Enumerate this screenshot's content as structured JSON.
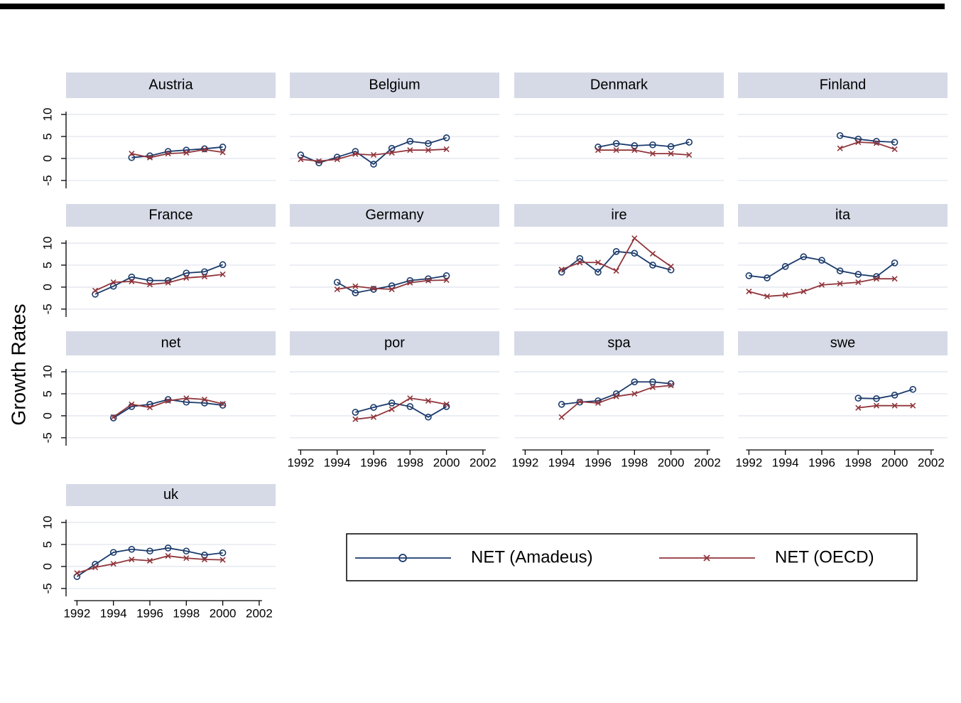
{
  "y_axis_title": "Growth Rates",
  "chart_data": [
    {
      "type": "line",
      "title": "Austria",
      "x": [
        1992,
        1993,
        1994,
        1995,
        1996,
        1997,
        1998,
        1999,
        2000,
        2001
      ],
      "xlim": [
        1991.4,
        2002.9
      ],
      "ylim": [
        -6.8,
        13.4
      ],
      "yticks": [
        -5,
        0,
        5,
        10
      ],
      "ytick_labels": true,
      "grid": true,
      "series": [
        {
          "name": "NET (Amadeus)",
          "color": "#1a3a6b",
          "marker": "circle",
          "values": [
            null,
            null,
            null,
            0.2,
            0.6,
            1.6,
            1.9,
            2.2,
            2.6,
            null
          ]
        },
        {
          "name": "NET (OECD)",
          "color": "#90353b",
          "marker": "x",
          "values": [
            null,
            null,
            null,
            1.1,
            0.2,
            1.1,
            1.3,
            2.0,
            1.4,
            null
          ]
        }
      ]
    },
    {
      "type": "line",
      "title": "Belgium",
      "x": [
        1992,
        1993,
        1994,
        1995,
        1996,
        1997,
        1998,
        1999,
        2000,
        2001
      ],
      "xlim": [
        1991.4,
        2002.9
      ],
      "ylim": [
        -6.8,
        13.4
      ],
      "yticks": [
        -5,
        0,
        5,
        10
      ],
      "ytick_labels": false,
      "grid": true,
      "series": [
        {
          "color": "#1a3a6b",
          "marker": "circle",
          "values": [
            0.8,
            -1.0,
            0.3,
            1.6,
            -1.3,
            2.3,
            3.9,
            3.4,
            4.7,
            null
          ]
        },
        {
          "color": "#90353b",
          "marker": "x",
          "values": [
            -0.2,
            -0.6,
            -0.2,
            1.0,
            0.8,
            1.3,
            1.9,
            1.9,
            2.1,
            null
          ]
        }
      ]
    },
    {
      "type": "line",
      "title": "Denmark",
      "x": [
        1992,
        1993,
        1994,
        1995,
        1996,
        1997,
        1998,
        1999,
        2000,
        2001
      ],
      "xlim": [
        1991.4,
        2002.9
      ],
      "ylim": [
        -6.8,
        13.4
      ],
      "yticks": [
        -5,
        0,
        5,
        10
      ],
      "ytick_labels": false,
      "grid": true,
      "series": [
        {
          "color": "#1a3a6b",
          "marker": "circle",
          "values": [
            null,
            null,
            null,
            null,
            2.6,
            3.4,
            2.9,
            3.1,
            2.7,
            3.7
          ]
        },
        {
          "color": "#90353b",
          "marker": "x",
          "values": [
            null,
            null,
            null,
            null,
            1.9,
            1.9,
            1.9,
            1.1,
            1.1,
            0.8
          ]
        }
      ]
    },
    {
      "type": "line",
      "title": "Finland",
      "x": [
        1992,
        1993,
        1994,
        1995,
        1996,
        1997,
        1998,
        1999,
        2000,
        2001
      ],
      "xlim": [
        1991.4,
        2002.9
      ],
      "ylim": [
        -6.8,
        13.4
      ],
      "yticks": [
        -5,
        0,
        5,
        10
      ],
      "ytick_labels": false,
      "grid": true,
      "series": [
        {
          "color": "#1a3a6b",
          "marker": "circle",
          "values": [
            null,
            null,
            null,
            null,
            null,
            5.2,
            4.4,
            3.9,
            3.7,
            null
          ]
        },
        {
          "color": "#90353b",
          "marker": "x",
          "values": [
            null,
            null,
            null,
            null,
            null,
            2.3,
            3.7,
            3.5,
            2.1,
            null
          ]
        }
      ]
    },
    {
      "type": "line",
      "title": "France",
      "x": [
        1992,
        1993,
        1994,
        1995,
        1996,
        1997,
        1998,
        1999,
        2000,
        2001
      ],
      "xlim": [
        1991.4,
        2002.9
      ],
      "ylim": [
        -6.8,
        13.4
      ],
      "yticks": [
        -5,
        0,
        5,
        10
      ],
      "ytick_labels": true,
      "grid": true,
      "series": [
        {
          "color": "#1a3a6b",
          "marker": "circle",
          "values": [
            null,
            -1.6,
            0.2,
            2.3,
            1.5,
            1.5,
            3.2,
            3.5,
            5.1,
            null
          ]
        },
        {
          "color": "#90353b",
          "marker": "x",
          "values": [
            null,
            -0.8,
            1.1,
            1.3,
            0.6,
            1.0,
            2.1,
            2.4,
            2.9,
            null
          ]
        }
      ]
    },
    {
      "type": "line",
      "title": "Germany",
      "x": [
        1992,
        1993,
        1994,
        1995,
        1996,
        1997,
        1998,
        1999,
        2000,
        2001
      ],
      "xlim": [
        1991.4,
        2002.9
      ],
      "ylim": [
        -6.8,
        13.4
      ],
      "yticks": [
        -5,
        0,
        5,
        10
      ],
      "ytick_labels": false,
      "grid": true,
      "series": [
        {
          "color": "#1a3a6b",
          "marker": "circle",
          "values": [
            null,
            null,
            1.1,
            -1.3,
            -0.5,
            0.3,
            1.5,
            1.9,
            2.6,
            null
          ]
        },
        {
          "color": "#90353b",
          "marker": "x",
          "values": [
            null,
            null,
            -0.5,
            0.2,
            -0.3,
            -0.5,
            1.0,
            1.5,
            1.6,
            null
          ]
        }
      ]
    },
    {
      "type": "line",
      "title": "ire",
      "x": [
        1992,
        1993,
        1994,
        1995,
        1996,
        1997,
        1998,
        1999,
        2000,
        2001
      ],
      "xlim": [
        1991.4,
        2002.9
      ],
      "ylim": [
        -6.8,
        13.4
      ],
      "yticks": [
        -5,
        0,
        5,
        10
      ],
      "ytick_labels": false,
      "grid": true,
      "series": [
        {
          "color": "#1a3a6b",
          "marker": "circle",
          "values": [
            null,
            null,
            3.4,
            6.5,
            3.4,
            8.1,
            7.7,
            5.0,
            3.9,
            null
          ]
        },
        {
          "color": "#90353b",
          "marker": "x",
          "values": [
            null,
            null,
            4.0,
            5.6,
            5.6,
            3.7,
            11.1,
            7.6,
            4.7,
            null
          ]
        }
      ]
    },
    {
      "type": "line",
      "title": "ita",
      "x": [
        1992,
        1993,
        1994,
        1995,
        1996,
        1997,
        1998,
        1999,
        2000,
        2001
      ],
      "xlim": [
        1991.4,
        2002.9
      ],
      "ylim": [
        -6.8,
        13.4
      ],
      "yticks": [
        -5,
        0,
        5,
        10
      ],
      "ytick_labels": false,
      "grid": true,
      "series": [
        {
          "color": "#1a3a6b",
          "marker": "circle",
          "values": [
            2.6,
            2.1,
            4.7,
            6.9,
            6.1,
            3.7,
            2.9,
            2.4,
            5.5,
            null
          ]
        },
        {
          "color": "#90353b",
          "marker": "x",
          "values": [
            -1.0,
            -2.1,
            -1.8,
            -1.0,
            0.5,
            0.8,
            1.1,
            1.9,
            1.9,
            null
          ]
        }
      ]
    },
    {
      "type": "line",
      "title": "net",
      "x": [
        1992,
        1993,
        1994,
        1995,
        1996,
        1997,
        1998,
        1999,
        2000,
        2001
      ],
      "xlim": [
        1991.4,
        2002.9
      ],
      "ylim": [
        -6.8,
        13.4
      ],
      "yticks": [
        -5,
        0,
        5,
        10
      ],
      "ytick_labels": true,
      "grid": true,
      "series": [
        {
          "color": "#1a3a6b",
          "marker": "circle",
          "values": [
            null,
            null,
            -0.5,
            2.1,
            2.6,
            3.7,
            3.1,
            2.9,
            2.4,
            null
          ]
        },
        {
          "color": "#90353b",
          "marker": "x",
          "values": [
            null,
            null,
            -0.3,
            2.6,
            1.9,
            3.4,
            4.0,
            3.7,
            2.7,
            null
          ]
        }
      ]
    },
    {
      "type": "line",
      "title": "por",
      "x": [
        1992,
        1993,
        1994,
        1995,
        1996,
        1997,
        1998,
        1999,
        2000,
        2001
      ],
      "xlim": [
        1991.4,
        2002.9
      ],
      "ylim": [
        -6.8,
        13.4
      ],
      "xticks": [
        1992,
        1994,
        1996,
        1998,
        2000,
        2002
      ],
      "yticks": [
        -5,
        0,
        5,
        10
      ],
      "ytick_labels": false,
      "grid": true,
      "series": [
        {
          "color": "#1a3a6b",
          "marker": "circle",
          "values": [
            null,
            null,
            null,
            0.8,
            1.9,
            2.9,
            2.1,
            -0.3,
            2.1,
            null
          ]
        },
        {
          "color": "#90353b",
          "marker": "x",
          "values": [
            null,
            null,
            null,
            -0.8,
            -0.3,
            1.5,
            4.0,
            3.4,
            2.6,
            null
          ]
        }
      ]
    },
    {
      "type": "line",
      "title": "spa",
      "x": [
        1992,
        1993,
        1994,
        1995,
        1996,
        1997,
        1998,
        1999,
        2000,
        2001
      ],
      "xlim": [
        1991.4,
        2002.9
      ],
      "ylim": [
        -6.8,
        13.4
      ],
      "xticks": [
        1992,
        1994,
        1996,
        1998,
        2000,
        2002
      ],
      "yticks": [
        -5,
        0,
        5,
        10
      ],
      "ytick_labels": false,
      "grid": true,
      "series": [
        {
          "color": "#1a3a6b",
          "marker": "circle",
          "values": [
            null,
            null,
            2.6,
            3.1,
            3.4,
            5.0,
            7.7,
            7.7,
            7.3,
            null
          ]
        },
        {
          "color": "#90353b",
          "marker": "x",
          "values": [
            null,
            null,
            -0.3,
            3.2,
            2.9,
            4.4,
            5.0,
            6.5,
            6.9,
            null
          ]
        }
      ]
    },
    {
      "type": "line",
      "title": "swe",
      "x": [
        1992,
        1993,
        1994,
        1995,
        1996,
        1997,
        1998,
        1999,
        2000,
        2001
      ],
      "xlim": [
        1991.4,
        2002.9
      ],
      "ylim": [
        -6.8,
        13.4
      ],
      "xticks": [
        1992,
        1994,
        1996,
        1998,
        2000,
        2002
      ],
      "yticks": [
        -5,
        0,
        5,
        10
      ],
      "ytick_labels": false,
      "grid": true,
      "series": [
        {
          "color": "#1a3a6b",
          "marker": "circle",
          "values": [
            null,
            null,
            null,
            null,
            null,
            null,
            4.0,
            3.9,
            4.7,
            6.0
          ]
        },
        {
          "color": "#90353b",
          "marker": "x",
          "values": [
            null,
            null,
            null,
            null,
            null,
            null,
            1.8,
            2.3,
            2.3,
            2.3
          ]
        }
      ]
    },
    {
      "type": "line",
      "title": "uk",
      "x": [
        1992,
        1993,
        1994,
        1995,
        1996,
        1997,
        1998,
        1999,
        2000,
        2001
      ],
      "xlim": [
        1991.4,
        2002.9
      ],
      "ylim": [
        -6.8,
        13.4
      ],
      "xticks": [
        1992,
        1994,
        1996,
        1998,
        2000,
        2002
      ],
      "yticks": [
        -5,
        0,
        5,
        10
      ],
      "ytick_labels": true,
      "grid": true,
      "series": [
        {
          "color": "#1a3a6b",
          "marker": "circle",
          "values": [
            -2.3,
            0.5,
            3.2,
            3.9,
            3.5,
            4.2,
            3.5,
            2.6,
            3.1,
            null
          ]
        },
        {
          "color": "#90353b",
          "marker": "x",
          "values": [
            -1.5,
            -0.2,
            0.6,
            1.6,
            1.3,
            2.4,
            1.9,
            1.6,
            1.5,
            null
          ]
        }
      ]
    }
  ]
}
